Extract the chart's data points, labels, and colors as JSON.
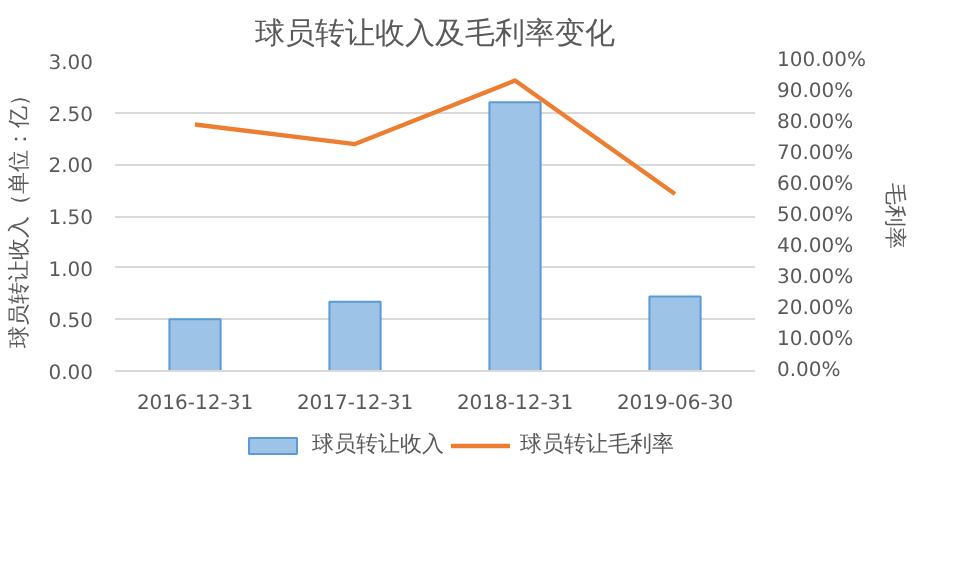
{
  "chart_data": {
    "type": "bar",
    "title": "球员转让收入及毛利率变化",
    "ylabel": "球员转让收入（单位：亿）",
    "y2label": "毛利率",
    "categories": [
      "2016-12-31",
      "2017-12-31",
      "2018-12-31",
      "2019-06-30"
    ],
    "series": [
      {
        "name": "球员转让收入",
        "color": "#9dc3e6",
        "values": [
          0.5,
          0.67,
          2.6,
          0.72
        ]
      },
      {
        "name": "球员转让毛利率",
        "type": "line",
        "axis": "y2",
        "color": "#ed7d31",
        "values": [
          79.5,
          73.2,
          93.7,
          57.1
        ]
      }
    ],
    "ylim": [
      0,
      3
    ],
    "yticks": [
      {
        "value": 0,
        "label": "0.00"
      },
      {
        "value": 0.5,
        "label": "0.50"
      },
      {
        "value": 1,
        "label": "1.00"
      },
      {
        "value": 1.5,
        "label": "1.50"
      },
      {
        "value": 2,
        "label": "2.00"
      },
      {
        "value": 2.5,
        "label": "2.50"
      },
      {
        "value": 3,
        "label": "3.00"
      }
    ],
    "y2lim": [
      0,
      100
    ],
    "y2ticks": [
      {
        "value": 0,
        "label": "0.00%"
      },
      {
        "value": 10,
        "label": "10.00%"
      },
      {
        "value": 20,
        "label": "20.00%"
      },
      {
        "value": 30,
        "label": "30.00%"
      },
      {
        "value": 40,
        "label": "40.00%"
      },
      {
        "value": 50,
        "label": "50.00%"
      },
      {
        "value": 60,
        "label": "60.00%"
      },
      {
        "value": 70,
        "label": "70.00%"
      },
      {
        "value": 80,
        "label": "80.00%"
      },
      {
        "value": 90,
        "label": "90.00%"
      },
      {
        "value": 100,
        "label": "100.00%"
      }
    ],
    "grid": "y",
    "legend": "bottom"
  }
}
